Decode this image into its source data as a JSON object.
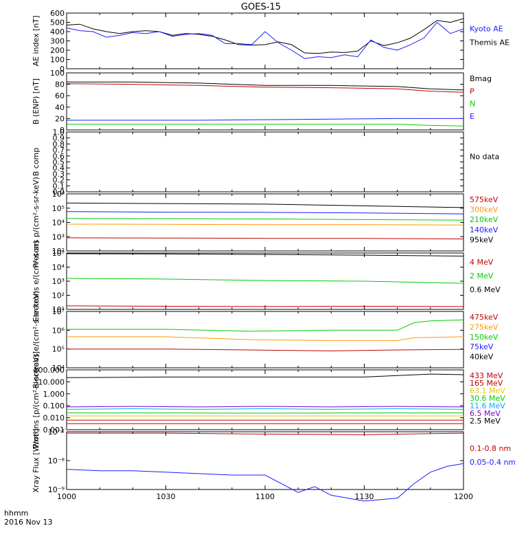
{
  "title": "GOES-15",
  "x_axis": {
    "ticks": [
      "1000",
      "1030",
      "1100",
      "1130",
      "1200"
    ],
    "corner_label_1": "hhmm",
    "corner_label_2": "2016 Nov 13"
  },
  "colors": {
    "black": "#000000",
    "blue": "#1a1aff",
    "red": "#c00000",
    "green": "#00cc00",
    "orange": "#ff9900",
    "cyan": "#00aaff",
    "purple": "#7a00cc",
    "yellow": "#e6c800"
  },
  "chart_data": [
    {
      "type": "line",
      "ylabel": "AE index [nT]",
      "yticks": [
        "0",
        "100",
        "200",
        "300",
        "400",
        "500",
        "600"
      ],
      "ylim": [
        0,
        600
      ],
      "legend": [
        {
          "name": "Kyoto AE",
          "color": "blue"
        },
        {
          "name": "Themis AE",
          "color": "black"
        }
      ],
      "series": [
        {
          "name": "Themis AE",
          "color": "black",
          "x": [
            0,
            4,
            8,
            12,
            16,
            20,
            24,
            28,
            32,
            36,
            40,
            44,
            48,
            52,
            56,
            60,
            64,
            68,
            72,
            76,
            80,
            84,
            88,
            92,
            96,
            100,
            104,
            108,
            112,
            116,
            120
          ],
          "y": [
            470,
            480,
            430,
            400,
            380,
            400,
            410,
            400,
            360,
            380,
            370,
            350,
            310,
            260,
            255,
            260,
            290,
            260,
            170,
            165,
            180,
            175,
            190,
            300,
            250,
            280,
            330,
            420,
            520,
            500,
            540
          ]
        },
        {
          "name": "Kyoto AE",
          "color": "blue",
          "x": [
            0,
            4,
            8,
            12,
            16,
            20,
            24,
            28,
            32,
            36,
            40,
            44,
            48,
            52,
            56,
            60,
            64,
            68,
            72,
            76,
            80,
            84,
            88,
            92,
            96,
            100,
            104,
            108,
            112,
            116,
            120
          ],
          "y": [
            440,
            410,
            400,
            340,
            360,
            390,
            380,
            400,
            350,
            370,
            380,
            360,
            270,
            270,
            260,
            400,
            280,
            200,
            110,
            130,
            120,
            150,
            130,
            310,
            230,
            200,
            260,
            330,
            500,
            380,
            430
          ]
        }
      ]
    },
    {
      "type": "line",
      "ylabel": "B (ENP) [nT]",
      "yticks": [
        "0",
        "20",
        "40",
        "60",
        "80",
        "100"
      ],
      "ylim": [
        0,
        100
      ],
      "legend": [
        {
          "name": "Bmag",
          "color": "black"
        },
        {
          "name": "P",
          "color": "red"
        },
        {
          "name": "N",
          "color": "green"
        },
        {
          "name": "E",
          "color": "blue"
        }
      ],
      "series": [
        {
          "name": "Bmag",
          "color": "black",
          "x": [
            0,
            20,
            40,
            60,
            80,
            100,
            110,
            120
          ],
          "y": [
            84,
            84,
            82,
            78,
            78,
            76,
            72,
            70
          ]
        },
        {
          "name": "P",
          "color": "red",
          "x": [
            0,
            20,
            40,
            60,
            80,
            100,
            110,
            120
          ],
          "y": [
            81,
            80,
            78,
            75,
            74,
            72,
            68,
            66
          ]
        },
        {
          "name": "N",
          "color": "green",
          "x": [
            0,
            20,
            40,
            60,
            80,
            100,
            110,
            120
          ],
          "y": [
            10,
            10,
            10,
            10,
            10,
            10,
            8,
            7
          ]
        },
        {
          "name": "E",
          "color": "blue",
          "x": [
            0,
            20,
            40,
            60,
            80,
            100,
            110,
            120
          ],
          "y": [
            17,
            17,
            17,
            18,
            19,
            20,
            20,
            20
          ]
        }
      ]
    },
    {
      "type": "line",
      "ylabel": "B comp",
      "yticks": [
        "0.0",
        "0.1",
        "0.2",
        "0.3",
        "0.4",
        "0.5",
        "0.6",
        "0.7",
        "0.8",
        "0.9",
        "1.0"
      ],
      "ylim": [
        0,
        1
      ],
      "legend": [
        {
          "name": "No data",
          "color": "black"
        }
      ],
      "series": []
    },
    {
      "type": "line",
      "ylabel": "Protons p/(cm²-s-sr-keV)",
      "log": true,
      "yticks": [
        "10²",
        "10³",
        "10⁴",
        "10⁵",
        "10⁶"
      ],
      "ylim": [
        1,
        6
      ],
      "legend": [
        {
          "name": "575keV",
          "color": "red"
        },
        {
          "name": "300keV",
          "color": "orange"
        },
        {
          "name": "210keV",
          "color": "green"
        },
        {
          "name": "140keV",
          "color": "blue"
        },
        {
          "name": "95keV",
          "color": "black"
        }
      ],
      "series": [
        {
          "name": "95keV",
          "color": "black",
          "x": [
            0,
            30,
            60,
            90,
            120
          ],
          "y": [
            5.2,
            5.15,
            5.1,
            4.95,
            4.8
          ]
        },
        {
          "name": "140keV",
          "color": "blue",
          "x": [
            0,
            30,
            60,
            90,
            120
          ],
          "y": [
            4.45,
            4.4,
            4.38,
            4.33,
            4.25
          ]
        },
        {
          "name": "210keV",
          "color": "green",
          "x": [
            0,
            30,
            60,
            90,
            120
          ],
          "y": [
            3.85,
            3.83,
            3.8,
            3.75,
            3.7
          ]
        },
        {
          "name": "300keV",
          "color": "orange",
          "x": [
            0,
            30,
            60,
            90,
            120
          ],
          "y": [
            3.35,
            3.33,
            3.3,
            3.3,
            3.28
          ]
        },
        {
          "name": "575keV",
          "color": "red",
          "x": [
            0,
            30,
            60,
            90,
            120
          ],
          "y": [
            2.15,
            2.13,
            2.1,
            2.1,
            2.05
          ]
        }
      ]
    },
    {
      "type": "line",
      "ylabel": "Electrons e/(cm²-s-sr)",
      "log": true,
      "yticks": [
        "10¹",
        "10²",
        "10³",
        "10⁴",
        "10⁵"
      ],
      "ylim": [
        1,
        5
      ],
      "legend": [
        {
          "name": "4 MeV",
          "color": "red"
        },
        {
          "name": "2 MeV",
          "color": "green"
        },
        {
          "name": "0.6 MeV",
          "color": "black"
        }
      ],
      "series": [
        {
          "name": "0.6 MeV",
          "color": "black",
          "x": [
            0,
            30,
            60,
            90,
            120
          ],
          "y": [
            4.95,
            4.93,
            4.9,
            4.85,
            4.78
          ]
        },
        {
          "name": "2 MeV",
          "color": "green",
          "x": [
            0,
            30,
            60,
            90,
            120
          ],
          "y": [
            3.2,
            3.15,
            3.05,
            3.0,
            2.85
          ]
        },
        {
          "name": "4 MeV",
          "color": "red",
          "x": [
            0,
            30,
            60,
            90,
            120
          ],
          "y": [
            1.25,
            1.22,
            1.2,
            1.22,
            1.2
          ]
        }
      ]
    },
    {
      "type": "line",
      "ylabel": "Electrons e/(cm²-s-sr-keV)",
      "log": true,
      "yticks": [
        "10⁴",
        "10⁵",
        "10⁶",
        "10⁷"
      ],
      "ylim": [
        4,
        7
      ],
      "legend": [
        {
          "name": "475keV",
          "color": "red"
        },
        {
          "name": "275keV",
          "color": "orange"
        },
        {
          "name": "150keV",
          "color": "green"
        },
        {
          "name": "75keV",
          "color": "blue"
        },
        {
          "name": "40keV",
          "color": "black"
        }
      ],
      "series": [
        {
          "name": "150keV",
          "color": "green",
          "x": [
            0,
            30,
            55,
            80,
            100,
            105,
            110,
            120
          ],
          "y": [
            6.05,
            6.05,
            5.95,
            6.0,
            6.0,
            6.4,
            6.5,
            6.55
          ]
        },
        {
          "name": "275keV",
          "color": "orange",
          "x": [
            0,
            30,
            55,
            80,
            100,
            105,
            120
          ],
          "y": [
            5.65,
            5.65,
            5.5,
            5.45,
            5.45,
            5.6,
            5.65
          ]
        },
        {
          "name": "475keV",
          "color": "red",
          "x": [
            0,
            30,
            55,
            80,
            100,
            120
          ],
          "y": [
            5.0,
            5.0,
            4.95,
            4.9,
            4.95,
            4.98
          ]
        }
      ]
    },
    {
      "type": "line",
      "ylabel": "Protons [p/(cm²-s-sr-keV)]",
      "log": true,
      "yticks": [
        "0.001",
        "0.010",
        "0.100",
        "1.000",
        "10.000",
        "100.000"
      ],
      "ylim": [
        -3,
        2
      ],
      "legend": [
        {
          "name": "433 MeV",
          "color": "red"
        },
        {
          "name": "165 MeV",
          "color": "red"
        },
        {
          "name": "63.1 MeV",
          "color": "yellow"
        },
        {
          "name": "30.6 MeV",
          "color": "green"
        },
        {
          "name": "11.6 MeV",
          "color": "cyan"
        },
        {
          "name": "6.5 MeV",
          "color": "purple"
        },
        {
          "name": "2.5 MeV",
          "color": "black"
        }
      ],
      "series": [
        {
          "name": "2.5 MeV",
          "color": "black",
          "x": [
            0,
            30,
            60,
            90,
            110,
            120
          ],
          "y": [
            1.35,
            1.4,
            1.4,
            1.4,
            1.65,
            1.6
          ]
        },
        {
          "name": "6.5 MeV",
          "color": "purple",
          "x": [
            0,
            20,
            40,
            60,
            80,
            100,
            120
          ],
          "y": [
            -1.1,
            -1.05,
            -1.1,
            -1.05,
            -1.1,
            -1.05,
            -1.1
          ]
        },
        {
          "name": "11.6 MeV",
          "color": "cyan",
          "x": [
            0,
            20,
            40,
            60,
            80,
            100,
            120
          ],
          "y": [
            -1.3,
            -1.25,
            -1.3,
            -1.25,
            -1.3,
            -1.25,
            -1.3
          ]
        },
        {
          "name": "30.6 MeV",
          "color": "green",
          "x": [
            0,
            30,
            60,
            90,
            120
          ],
          "y": [
            -1.6,
            -1.6,
            -1.62,
            -1.6,
            -1.6
          ]
        },
        {
          "name": "63.1 MeV",
          "color": "yellow",
          "x": [
            0,
            30,
            60,
            90,
            120
          ],
          "y": [
            -1.85,
            -1.85,
            -1.85,
            -1.85,
            -1.85
          ]
        },
        {
          "name": "165 MeV",
          "color": "red",
          "x": [
            0,
            30,
            60,
            90,
            120
          ],
          "y": [
            -2.2,
            -2.2,
            -2.2,
            -2.2,
            -2.2
          ]
        },
        {
          "name": "433 MeV",
          "color": "red",
          "x": [
            0,
            30,
            60,
            90,
            120
          ],
          "y": [
            -2.5,
            -2.5,
            -2.5,
            -2.5,
            -2.5
          ]
        }
      ]
    },
    {
      "type": "line",
      "ylabel": "Xray Flux [W/m²]",
      "log": true,
      "yticks": [
        "10⁻⁹",
        "10⁻⁸",
        "10⁻⁷"
      ],
      "ylim": [
        -9,
        -7
      ],
      "legend": [
        {
          "name": "0.1-0.8 nm",
          "color": "red"
        },
        {
          "name": "0.05-0.4 nm",
          "color": "blue"
        }
      ],
      "series": [
        {
          "name": "0.1-0.8 nm",
          "color": "red",
          "x": [
            0,
            30,
            60,
            90,
            120
          ],
          "y": [
            -7.05,
            -7.05,
            -7.08,
            -7.1,
            -7.05
          ]
        },
        {
          "name": "0.05-0.4 nm",
          "color": "blue",
          "x": [
            0,
            10,
            20,
            30,
            40,
            50,
            60,
            70,
            75,
            80,
            90,
            100,
            105,
            110,
            115,
            120
          ],
          "y": [
            -8.3,
            -8.35,
            -8.35,
            -8.4,
            -8.45,
            -8.5,
            -8.5,
            -9.1,
            -8.9,
            -9.2,
            -9.4,
            -9.3,
            -8.8,
            -8.4,
            -8.2,
            -8.1
          ]
        }
      ]
    }
  ]
}
